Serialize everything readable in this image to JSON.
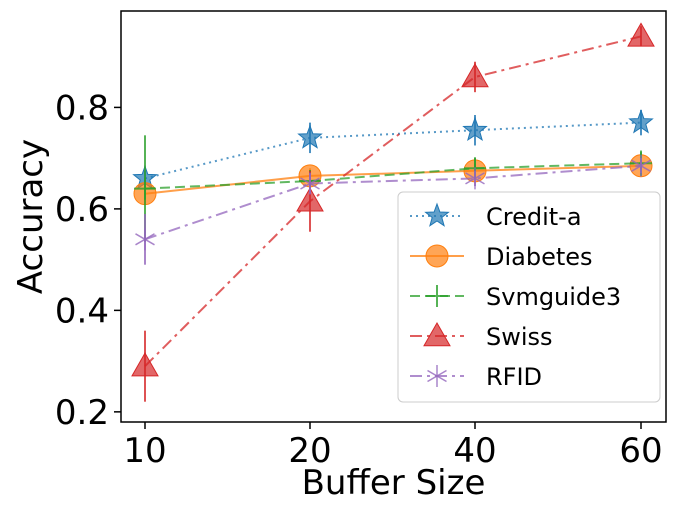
{
  "chart_data": {
    "type": "line",
    "xlabel": "Buffer Size",
    "ylabel": "Accuracy",
    "categories": [
      "10",
      "20",
      "40",
      "60"
    ],
    "ylim": [
      0.18,
      0.99
    ],
    "yticks": [
      "0.2",
      "0.4",
      "0.6",
      "0.8"
    ],
    "grid": false,
    "legend_position": "lower-right",
    "series": [
      {
        "name": "Credit-a",
        "color": "#1f77b4",
        "linestyle": "dotted",
        "marker": "star",
        "values": [
          0.66,
          0.74,
          0.755,
          0.77
        ],
        "errors": [
          0.015,
          0.03,
          0.03,
          0.025
        ]
      },
      {
        "name": "Diabetes",
        "color": "#ff7f0e",
        "linestyle": "solid",
        "marker": "circle",
        "values": [
          0.63,
          0.665,
          0.675,
          0.685
        ],
        "errors": [
          0.02,
          0.015,
          0.015,
          0.015
        ]
      },
      {
        "name": "Svmguide3",
        "color": "#2ca02c",
        "linestyle": "dashed",
        "marker": "plus",
        "values": [
          0.64,
          0.655,
          0.68,
          0.69
        ],
        "errors": [
          0.105,
          0.02,
          0.02,
          0.025
        ]
      },
      {
        "name": "Swiss",
        "color": "#d62728",
        "linestyle": "dashdot",
        "marker": "triangle",
        "values": [
          0.29,
          0.615,
          0.86,
          0.94
        ],
        "errors": [
          0.07,
          0.06,
          0.03,
          0.02
        ]
      },
      {
        "name": "RFID",
        "color": "#9467bd",
        "linestyle": "dashdot",
        "marker": "tri",
        "values": [
          0.54,
          0.65,
          0.66,
          0.685
        ],
        "errors": [
          0.05,
          0.02,
          0.015,
          0.015
        ]
      }
    ]
  }
}
